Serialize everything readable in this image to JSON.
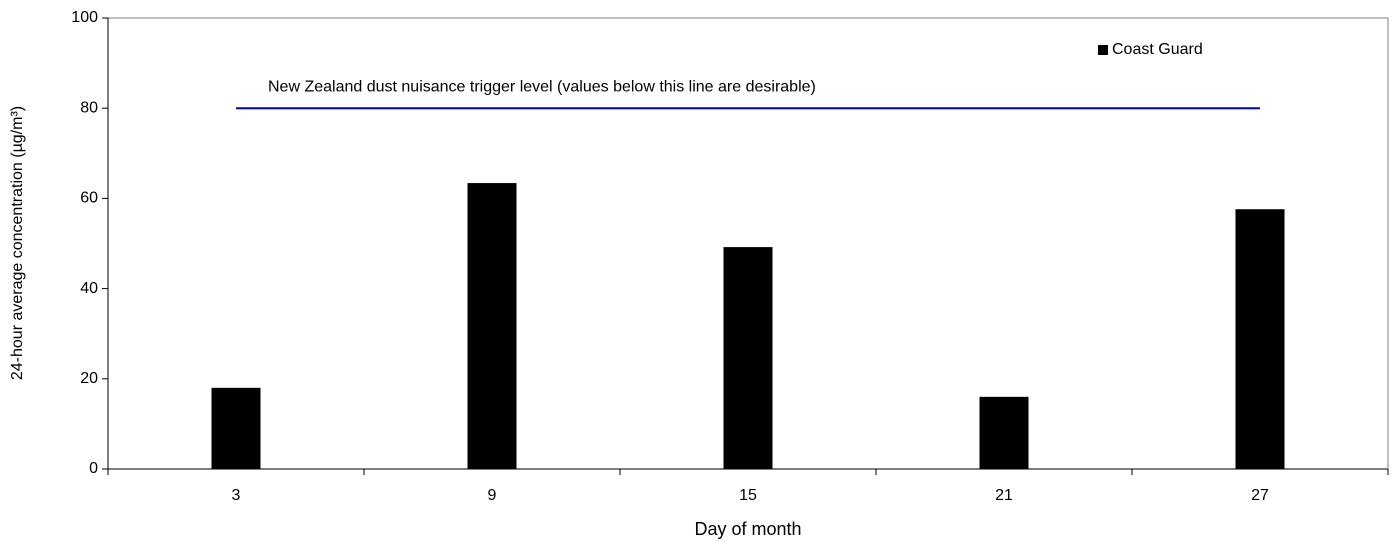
{
  "chart_data": {
    "type": "bar",
    "x_label": "Day of month",
    "y_label": "24-hour average concentration (µg/m³)",
    "categories": [
      "3",
      "9",
      "15",
      "21",
      "27"
    ],
    "series": [
      {
        "name": "Coast Guard",
        "color": "#000000",
        "values": [
          18,
          63.4,
          49.2,
          16,
          57.6
        ]
      }
    ],
    "ylim": [
      0,
      100
    ],
    "yticks": [
      0,
      20,
      40,
      60,
      80,
      100
    ],
    "grid": false,
    "legend": "top-right",
    "reference_line": {
      "value": 80,
      "label": "New Zealand dust nuisance trigger level (values below this line are desirable)",
      "color": "#0000cc"
    }
  }
}
